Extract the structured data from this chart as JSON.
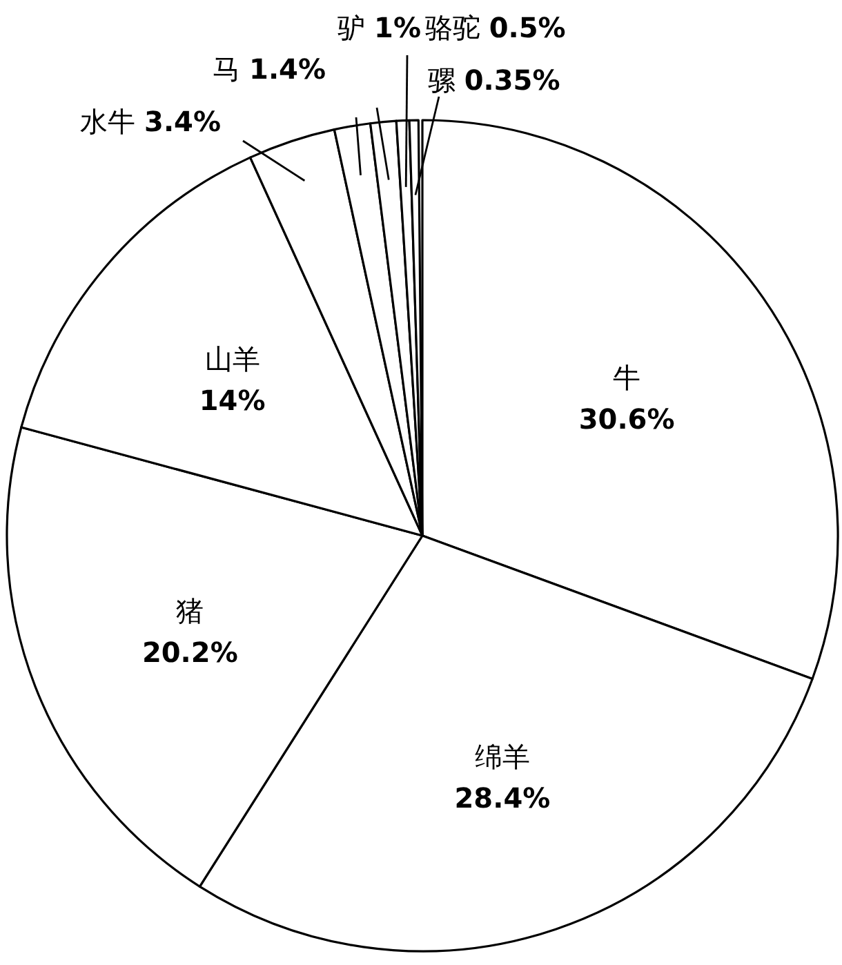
{
  "chart_data": {
    "type": "pie",
    "categories": [
      "牛",
      "绵羊",
      "猪",
      "山羊",
      "水牛",
      "马",
      "驴",
      "骆驼",
      "骡"
    ],
    "values": [
      30.6,
      28.4,
      20.2,
      14,
      3.4,
      1.4,
      1,
      0.5,
      0.35
    ],
    "value_labels": [
      "30.6%",
      "28.4%",
      "20.2%",
      "14%",
      "3.4%",
      "1.4%",
      "1%",
      "0.5%",
      "0.35%"
    ],
    "colors": [
      "#ffffff",
      "#ffffff",
      "#ffffff",
      "#ffffff",
      "#ffffff",
      "#ffffff",
      "#ffffff",
      "#ffffff",
      "#ffffff"
    ]
  }
}
